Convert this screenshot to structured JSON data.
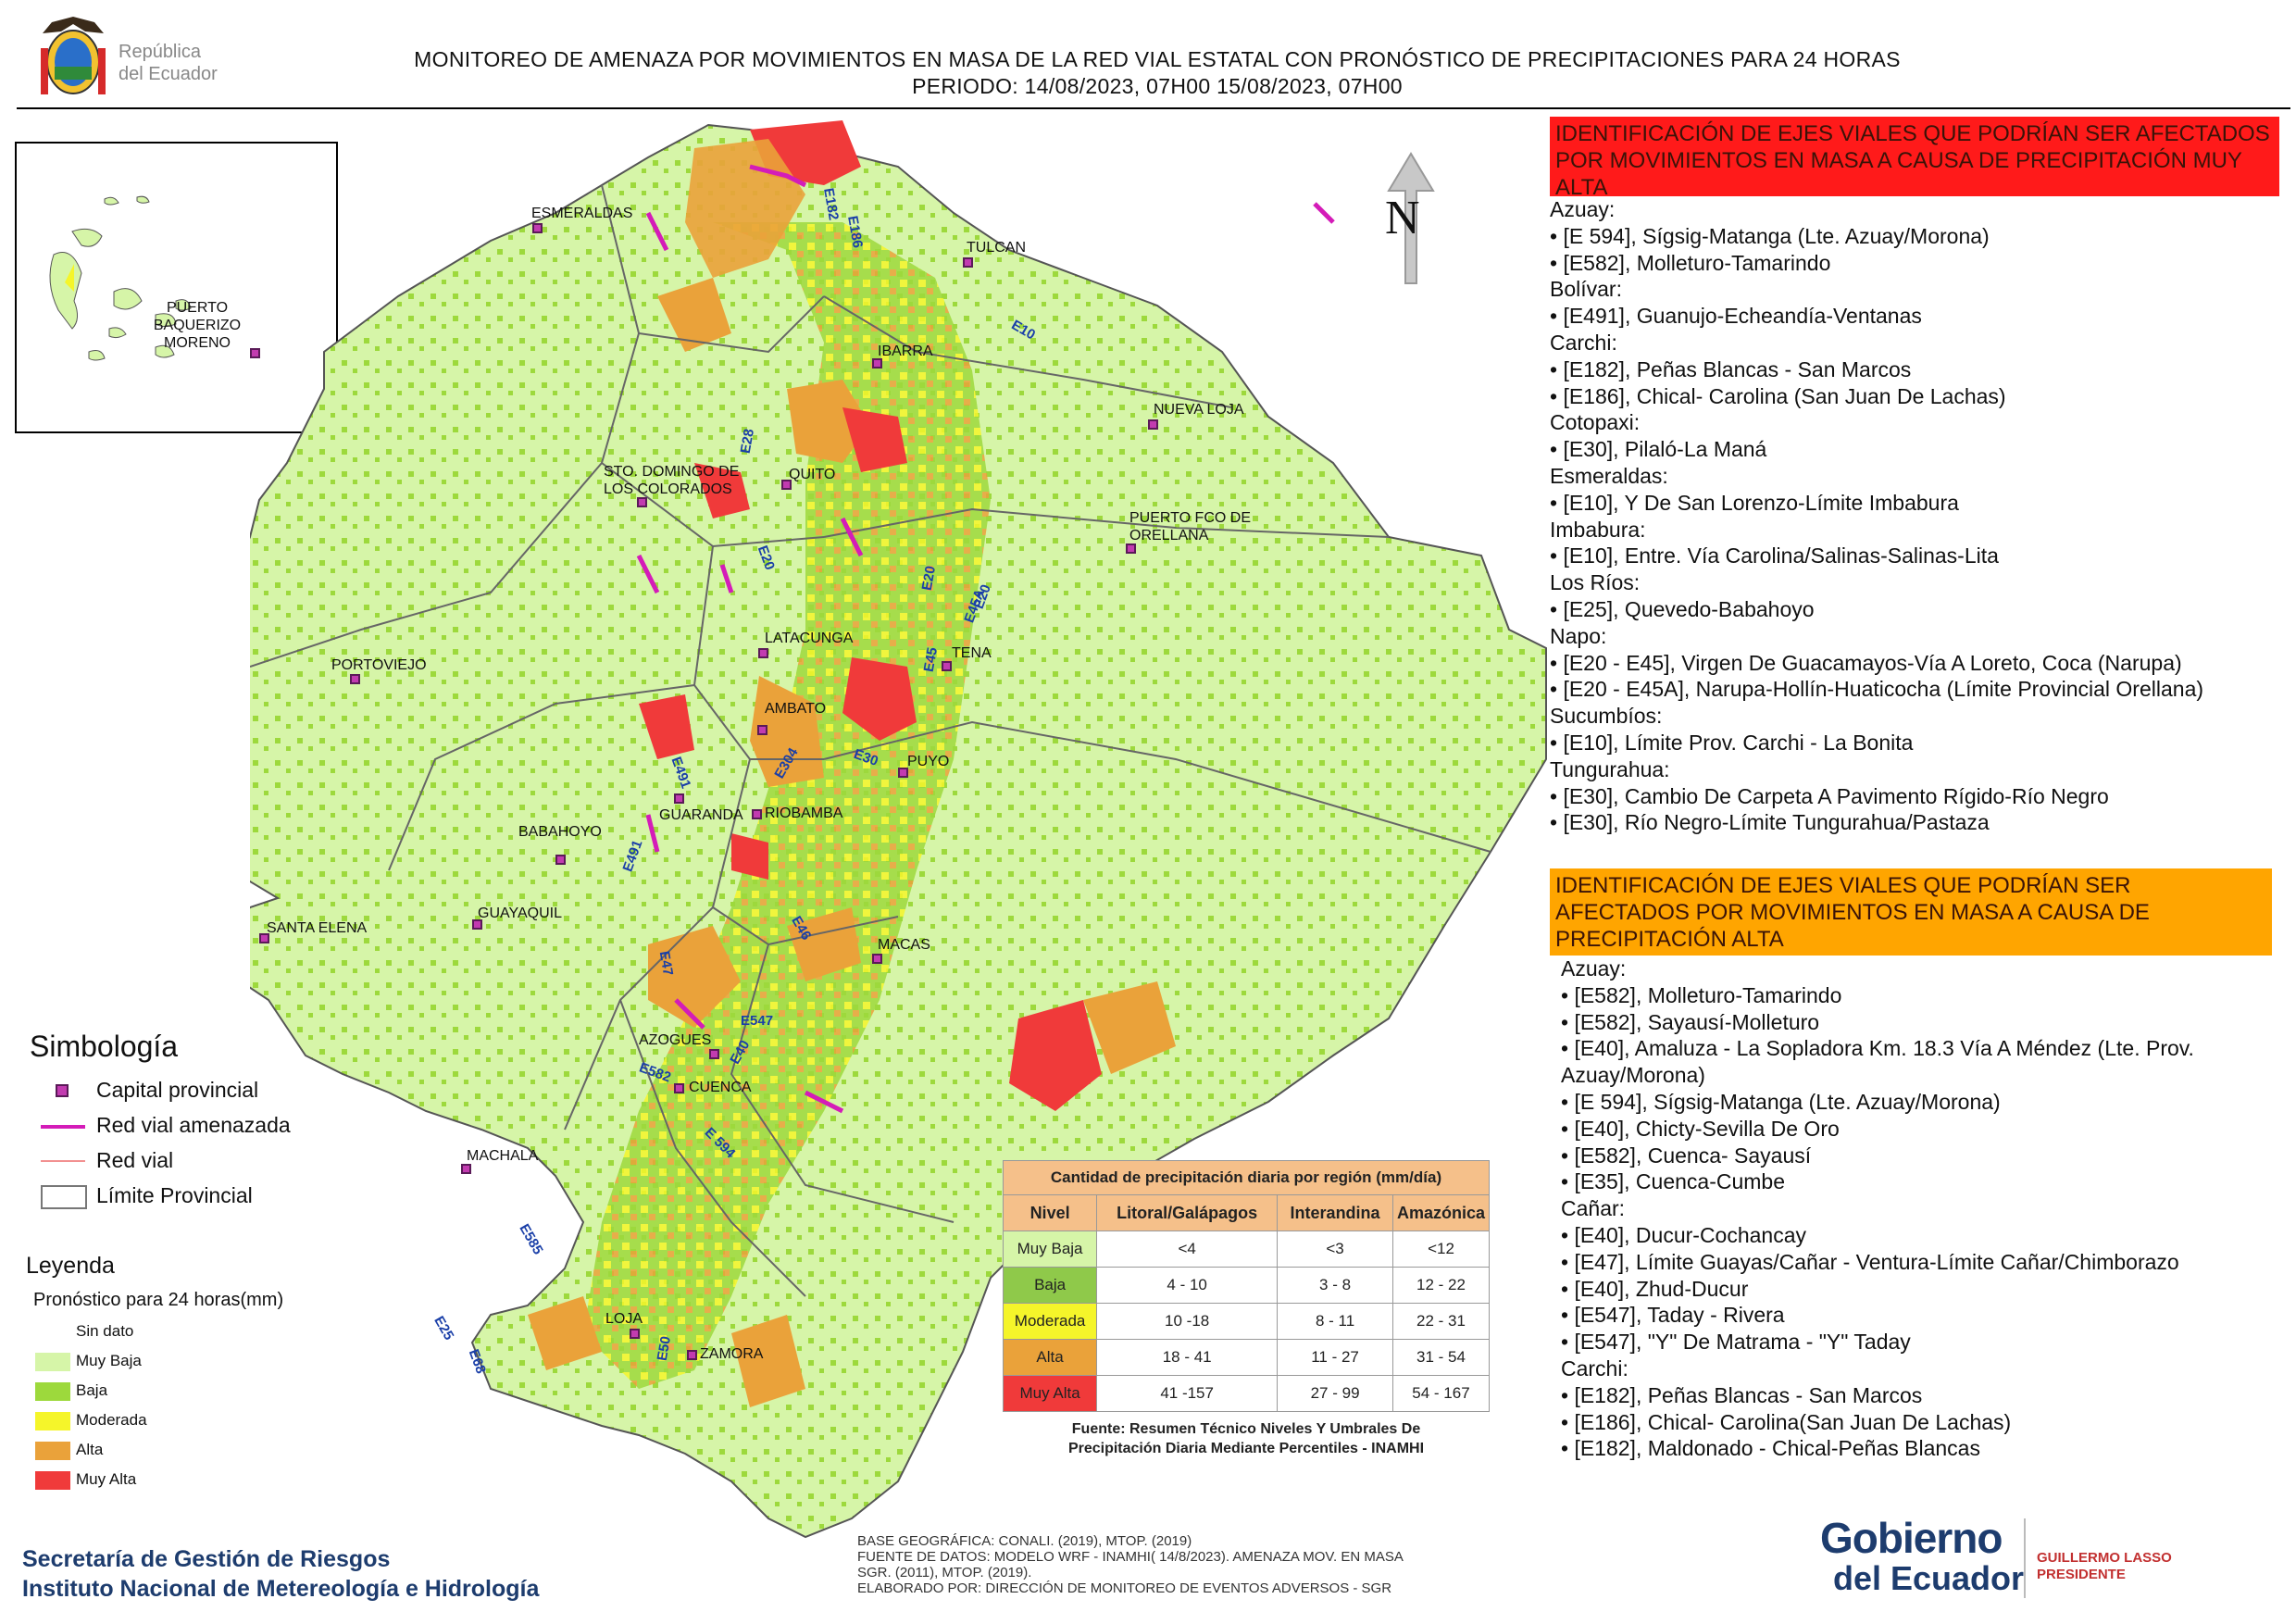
{
  "header": {
    "title_line1": "MONITOREO DE AMENAZA POR MOVIMIENTOS EN MASA DE LA RED VIAL  ESTATAL  CON PRONÓSTICO  DE  PRECIPITACIONES PARA 24 HORAS",
    "title_line2": "PERIODO: 14/08/2023, 07H00 15/08/2023, 07H00",
    "logo_line1": "República",
    "logo_line2": "del Ecuador"
  },
  "map": {
    "north_label": "N",
    "inset_city": "PUERTO BAQUERIZO MORENO",
    "cities": [
      {
        "name": "ESMERALDAS"
      },
      {
        "name": "TULCAN"
      },
      {
        "name": "IBARRA"
      },
      {
        "name": "NUEVA LOJA"
      },
      {
        "name": "STO. DOMINGO DE LOS COLORADOS"
      },
      {
        "name": "QUITO"
      },
      {
        "name": "PUERTO FCO DE ORELLANA"
      },
      {
        "name": "PORTOVIEJO"
      },
      {
        "name": "LATACUNGA"
      },
      {
        "name": "TENA"
      },
      {
        "name": "AMBATO"
      },
      {
        "name": "PUYO"
      },
      {
        "name": "GUARANDA"
      },
      {
        "name": "RIOBAMBA"
      },
      {
        "name": "BABAHOYO"
      },
      {
        "name": "SANTA ELENA"
      },
      {
        "name": "GUAYAQUIL"
      },
      {
        "name": "MACAS"
      },
      {
        "name": "AZOGUES"
      },
      {
        "name": "CUENCA"
      },
      {
        "name": "MACHALA"
      },
      {
        "name": "LOJA"
      },
      {
        "name": "ZAMORA"
      }
    ],
    "roads": [
      "E182",
      "E186",
      "E10",
      "E28",
      "E20",
      "E20",
      "E45A",
      "E20",
      "E45",
      "E304",
      "E30",
      "E491",
      "E491",
      "E46",
      "E47",
      "E547",
      "E40",
      "E582",
      "E 594",
      "E585",
      "E25",
      "E68",
      "E50"
    ]
  },
  "simbologia": {
    "title": "Simbología",
    "items": [
      "Capital provincial",
      "Red vial amenazada",
      "Red vial",
      "Límite Provincial"
    ]
  },
  "leyenda": {
    "title": "Leyenda",
    "subtitle": "Pronóstico para 24 horas(mm)",
    "items": [
      {
        "label": "Sin dato",
        "color": "#ffffff"
      },
      {
        "label": "Muy Baja",
        "color": "#d6f5a8"
      },
      {
        "label": "Baja",
        "color": "#9dd93c"
      },
      {
        "label": "Moderada",
        "color": "#f5f52a"
      },
      {
        "label": "Alta",
        "color": "#eaa23a"
      },
      {
        "label": "Muy Alta",
        "color": "#f03a3a"
      }
    ]
  },
  "precipitation_table": {
    "title": "Cantidad de precipitación diaria por región (mm/día)",
    "headers": [
      "Nivel",
      "Litoral/Galápagos",
      "Interandina",
      "Amazónica"
    ],
    "rows": [
      {
        "nivel": "Muy Baja",
        "litoral": "<4",
        "interandina": "<3",
        "amazonica": "<12",
        "color": "#d6f5a8"
      },
      {
        "nivel": "Baja",
        "litoral": "4 - 10",
        "interandina": "3 - 8",
        "amazonica": "12 - 22",
        "color": "#8fc94a"
      },
      {
        "nivel": "Moderada",
        "litoral": "10 -18",
        "interandina": "8 - 11",
        "amazonica": "22 - 31",
        "color": "#f5f52a"
      },
      {
        "nivel": "Alta",
        "litoral": "18 - 41",
        "interandina": "11 - 27",
        "amazonica": "31 - 54",
        "color": "#eaa23a"
      },
      {
        "nivel": "Muy Alta",
        "litoral": "41 -157",
        "interandina": "27 - 99",
        "amazonica": "54 - 167",
        "color": "#f03a3a"
      }
    ],
    "source_line1": "Fuente: Resumen Técnico Niveles Y Umbrales De",
    "source_line2": "Precipitación Diaria Mediante Percentiles - INAMHI"
  },
  "panel_muy_alta": {
    "header": "IDENTIFICACIÓN DE EJES VIALES QUE PODRÍAN SER AFECTADOS POR MOVIMIENTOS EN MASA A CAUSA DE PRECIPITACIÓN MUY ALTA",
    "color": "#ff1a1a",
    "lines": [
      "Azuay:",
      "• [E 594], Sígsig-Matanga (Lte. Azuay/Morona)",
      "• [E582], Molleturo-Tamarindo",
      "Bolívar:",
      "• [E491], Guanujo-Echeandía-Ventanas",
      "Carchi:",
      "• [E182], Peñas Blancas - San Marcos",
      "• [E186], Chical- Carolina (San Juan De Lachas)",
      "Cotopaxi:",
      "• [E30], Pilaló-La Maná",
      "Esmeraldas:",
      "• [E10], Y De San Lorenzo-Límite Imbabura",
      "Imbabura:",
      "• [E10], Entre. Vía Carolina/Salinas-Salinas-Lita",
      "Los Ríos:",
      "• [E25], Quevedo-Babahoyo",
      "Napo:",
      "• [E20 - E45], Virgen De Guacamayos-Vía A Loreto, Coca (Narupa)",
      "• [E20 - E45A], Narupa-Hollín-Huaticocha (Límite Provincial Orellana)",
      "Sucumbíos:",
      "• [E10], Límite Prov. Carchi - La Bonita",
      "Tungurahua:",
      "• [E30], Cambio De Carpeta A Pavimento Rígido-Río Negro",
      "• [E30], Río Negro-Límite Tungurahua/Pastaza"
    ]
  },
  "panel_alta": {
    "header": "IDENTIFICACIÓN DE EJES VIALES QUE PODRÍAN SER AFECTADOS POR MOVIMIENTOS EN MASA A CAUSA DE PRECIPITACIÓN  ALTA",
    "color": "#ffa500",
    "lines": [
      "Azuay:",
      "• [E582], Molleturo-Tamarindo",
      "• [E582], Sayausí-Molleturo",
      "• [E40], Amaluza - La Sopladora Km. 18.3 Vía A Méndez (Lte. Prov.",
      "Azuay/Morona)",
      "• [E 594], Sígsig-Matanga (Lte. Azuay/Morona)",
      "• [E40], Chicty-Sevilla De Oro",
      "• [E582], Cuenca- Sayausí",
      "• [E35], Cuenca-Cumbe",
      "Cañar:",
      "• [E40], Ducur-Cochancay",
      "• [E47], Límite Guayas/Cañar - Ventura-Límite Cañar/Chimborazo",
      "• [E40], Zhud-Ducur",
      "• [E547], Taday - Rivera",
      "• [E547], \"Y\" De Matrama - \"Y\" Taday",
      "Carchi:",
      "• [E182], Peñas Blancas - San Marcos",
      "• [E186], Chical- Carolina(San Juan De Lachas)",
      "• [E182], Maldonado - Chical-Peñas Blancas"
    ]
  },
  "footer": {
    "org_line1": "Secretaría de Gestión de Riesgos",
    "org_line2": "Instituto Nacional de Metereología e Hidrología",
    "source_line1": "BASE GEOGRÁFICA: CONALI. (2019), MTOP. (2019)",
    "source_line2": "FUENTE DE DATOS: MODELO WRF - INAMHI( 14/8/2023).  AMENAZA MOV. EN MASA",
    "source_line3": "SGR. (2011), MTOP. (2019).",
    "source_line4": "ELABORADO POR: DIRECCIÓN DE MONITOREO DE EVENTOS ADVERSOS - SGR",
    "gob_line1": "Gobierno",
    "gob_line2": "del Ecuador",
    "president_line1": "GUILLERMO LASSO",
    "president_line2": "PRESIDENTE"
  }
}
